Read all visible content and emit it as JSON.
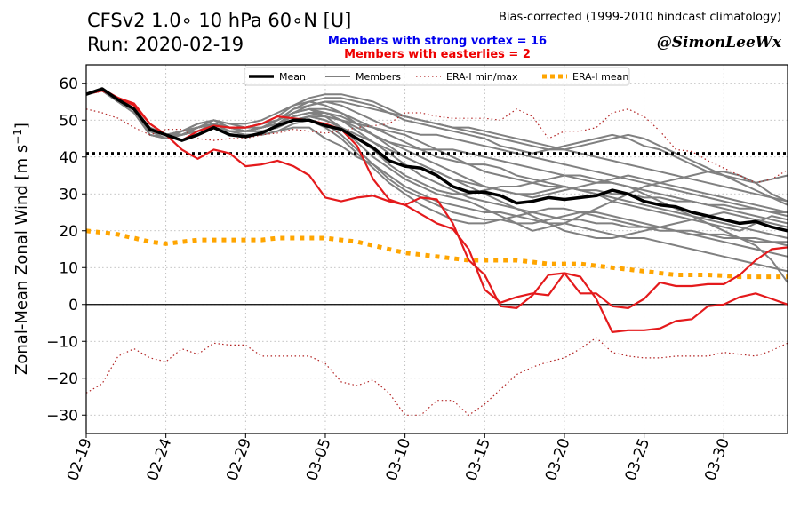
{
  "header": {
    "title_line1": "CFSv2 1.0∘ 10 hPa 60∘N [U]",
    "title_line2": "Run: 2020-02-19",
    "bias_note": "Bias-corrected (1999-2010 hindcast climatology)",
    "strong_vortex": "Members with strong vortex = 16",
    "easterlies": "Members with easterlies = 2",
    "credit": "@SimonLeeWx"
  },
  "colors": {
    "mean": "#000000",
    "members": "#808080",
    "easterly_members": "#e41a1c",
    "era_minmax": "#b22222",
    "era_mean": "#ffa500"
  },
  "chart_data": {
    "type": "line",
    "ylabel": "Zonal-Mean Zonal Wind [m s",
    "ylabel_sup": "−1",
    "ylabel_end": "]",
    "ylim": [
      -35,
      65
    ],
    "yticks": [
      60,
      50,
      40,
      30,
      20,
      10,
      0,
      -10,
      -20,
      -30
    ],
    "xlim_days": [
      0,
      44
    ],
    "xticks": [
      {
        "day": 0,
        "label": "02-19"
      },
      {
        "day": 5,
        "label": "02-24"
      },
      {
        "day": 10,
        "label": "02-29"
      },
      {
        "day": 15,
        "label": "03-05"
      },
      {
        "day": 20,
        "label": "03-10"
      },
      {
        "day": 25,
        "label": "03-15"
      },
      {
        "day": 30,
        "label": "03-20"
      },
      {
        "day": 35,
        "label": "03-25"
      },
      {
        "day": 40,
        "label": "03-30"
      }
    ],
    "grid": true,
    "legend": [
      {
        "key": "mean",
        "label": "Mean"
      },
      {
        "key": "members",
        "label": "Members"
      },
      {
        "key": "era_minmax",
        "label": "ERA-I min/max"
      },
      {
        "key": "era_mean",
        "label": "ERA-I mean"
      }
    ],
    "reference_lines": {
      "threshold": 41,
      "zero": 0
    },
    "series": [
      {
        "key": "mean",
        "values": [
          57,
          58.5,
          55.5,
          53,
          47.5,
          46,
          44.5,
          46,
          48,
          46,
          45.5,
          46.5,
          48.5,
          50,
          50,
          48.5,
          47.5,
          45,
          42.5,
          39,
          37.5,
          37,
          35,
          32,
          30.5,
          30.5,
          29.5,
          27.5,
          28,
          29,
          28.5,
          29,
          29.5,
          31,
          30,
          28,
          27,
          26.5,
          25,
          24,
          23,
          22,
          22.5,
          21,
          20
        ]
      },
      {
        "key": "era_mean",
        "values": [
          20,
          19.5,
          19,
          18,
          17,
          16.5,
          17,
          17.5,
          17.5,
          17.5,
          17.5,
          17.5,
          18,
          18,
          18,
          18,
          17.5,
          17,
          16,
          15,
          14,
          13.5,
          13,
          12.5,
          12,
          12,
          12,
          12,
          11.5,
          11,
          11,
          11,
          10.5,
          10,
          9.5,
          9,
          8.5,
          8,
          8,
          8,
          7.8,
          7.5,
          7.5,
          7.5,
          7.5
        ]
      },
      {
        "key": "era_max",
        "values": [
          53,
          52,
          50.5,
          48,
          46,
          47.5,
          47.5,
          45,
          44.5,
          45,
          45,
          46,
          46.5,
          47.5,
          47,
          46.5,
          47,
          48,
          48.5,
          49,
          52,
          52,
          51,
          50.5,
          50.5,
          50.5,
          50,
          53,
          51,
          45,
          47,
          47,
          48,
          52,
          53,
          51,
          47,
          42,
          41.5,
          39,
          37,
          35,
          33,
          34,
          36.5
        ]
      },
      {
        "key": "era_min",
        "values": [
          -24,
          -21.5,
          -14,
          -12,
          -14.5,
          -15.5,
          -12,
          -13.5,
          -10.5,
          -11,
          -11,
          -14,
          -14,
          -14,
          -14,
          -16,
          -21,
          -22,
          -20.5,
          -24,
          -30,
          -30,
          -26,
          -26,
          -30,
          -27,
          -23,
          -19,
          -17,
          -15.5,
          -14.5,
          -12,
          -9,
          -13,
          -14,
          -14.5,
          -14.5,
          -14,
          -14,
          -14,
          -13,
          -13.5,
          -14,
          -12.5,
          -10.5
        ]
      },
      {
        "key": "easterly_1",
        "values": [
          57,
          58.5,
          56,
          54.5,
          49,
          46,
          42,
          39.5,
          42,
          41,
          37.5,
          38,
          39,
          37.5,
          35,
          29,
          28,
          29,
          29.5,
          28,
          27,
          29,
          28.5,
          22,
          12,
          8,
          -0.5,
          -1,
          2.5,
          8,
          8.5,
          7.5,
          1.5,
          -7.5,
          -7,
          -7,
          -6.5,
          -4.5,
          -4,
          -0.5,
          0,
          2,
          3,
          1.5,
          0
        ]
      },
      {
        "key": "easterly_2",
        "values": [
          57,
          58,
          56,
          54,
          49,
          46,
          44.5,
          47,
          48.5,
          48,
          48,
          49,
          51,
          50.5,
          50,
          49,
          47.5,
          43,
          34,
          28.5,
          27,
          24.5,
          22,
          20.5,
          15,
          4,
          0.5,
          2,
          3,
          2.5,
          8.5,
          3,
          3,
          -0.5,
          -1,
          1.5,
          6,
          5,
          5,
          5.5,
          5.5,
          8,
          12,
          15,
          15.5
        ]
      },
      {
        "key": "member",
        "values": [
          57,
          58,
          55,
          53,
          46,
          45,
          47,
          48,
          49,
          48,
          47,
          48,
          49,
          52,
          53,
          53,
          52,
          50,
          48,
          46,
          44,
          42,
          40,
          39,
          38,
          38,
          37,
          35,
          34,
          33,
          32,
          31,
          30,
          28,
          27,
          26,
          25,
          24,
          23,
          22,
          21,
          20,
          22,
          24,
          23
        ]
      },
      {
        "key": "member",
        "values": [
          57,
          58,
          55,
          52,
          47,
          46,
          47,
          49,
          50,
          48,
          48,
          49,
          50,
          53,
          55,
          56,
          56,
          55,
          54,
          52,
          50,
          49,
          48,
          47,
          46,
          45,
          43,
          42,
          41,
          42,
          43,
          44,
          45,
          46,
          45,
          43,
          42,
          40,
          38,
          36,
          35,
          34,
          33,
          34,
          35
        ]
      },
      {
        "key": "member",
        "values": [
          57,
          58,
          56,
          53,
          48,
          46,
          46,
          48,
          49,
          47,
          46,
          46,
          47,
          48,
          48,
          45,
          43,
          40,
          38,
          35,
          32,
          30,
          28,
          27,
          26,
          25,
          25,
          24,
          23,
          22,
          22,
          21,
          20,
          19,
          18,
          18,
          17,
          16,
          15,
          14,
          13,
          12,
          11,
          10,
          9
        ]
      },
      {
        "key": "member",
        "values": [
          57,
          58,
          55,
          53,
          47,
          45,
          46,
          47,
          48,
          47,
          47,
          47,
          48,
          50,
          51,
          50,
          48,
          45,
          42,
          38,
          35,
          33,
          31,
          30,
          30,
          31,
          32,
          32,
          33,
          34,
          35,
          35,
          34,
          33,
          32,
          30,
          28,
          26,
          24,
          22,
          20,
          18,
          16,
          12,
          6
        ]
      },
      {
        "key": "member",
        "values": [
          57,
          58,
          56,
          53,
          48,
          46,
          47,
          48,
          49,
          48,
          47,
          48,
          49,
          51,
          52,
          52,
          51,
          49,
          46,
          43,
          40,
          38,
          36,
          34,
          33,
          32,
          31,
          30,
          30,
          31,
          32,
          31,
          30,
          29,
          28,
          27,
          26,
          25,
          24,
          23,
          22,
          21,
          20,
          19,
          18
        ]
      },
      {
        "key": "member",
        "values": [
          57,
          58,
          55,
          52,
          46,
          45,
          46,
          48,
          49,
          48,
          48,
          49,
          50,
          52,
          53,
          51,
          48,
          44,
          40,
          37,
          34,
          32,
          30,
          29,
          28,
          26,
          24,
          22,
          20,
          21,
          22,
          24,
          26,
          28,
          30,
          32,
          33,
          34,
          35,
          36,
          36,
          35,
          33,
          30,
          28
        ]
      },
      {
        "key": "member",
        "values": [
          57,
          58,
          55,
          53,
          47,
          46,
          46,
          47,
          48,
          47,
          47,
          48,
          50,
          53,
          54,
          55,
          54,
          52,
          50,
          48,
          47,
          46,
          46,
          45,
          44,
          43,
          42,
          41,
          40,
          39,
          38,
          37,
          36,
          35,
          34,
          33,
          32,
          31,
          30,
          29,
          28,
          27,
          26,
          25,
          24
        ]
      },
      {
        "key": "member",
        "values": [
          57,
          58,
          56,
          53,
          47,
          45,
          46,
          48,
          50,
          49,
          48,
          48,
          49,
          50,
          50,
          49,
          46,
          42,
          38,
          34,
          31,
          29,
          27,
          25,
          24,
          23,
          23,
          22,
          22,
          23,
          24,
          25,
          25,
          24,
          23,
          22,
          21,
          20,
          19,
          18,
          17,
          16,
          15,
          14,
          13
        ]
      },
      {
        "key": "member",
        "values": [
          57,
          58,
          55,
          52,
          47,
          46,
          47,
          48,
          49,
          48,
          48,
          49,
          51,
          54,
          56,
          57,
          57,
          56,
          55,
          53,
          51,
          50,
          49,
          48,
          47,
          46,
          45,
          44,
          43,
          42,
          42,
          43,
          44,
          45,
          46,
          45,
          43,
          41,
          39,
          37,
          35,
          33,
          31,
          29,
          27
        ]
      },
      {
        "key": "member",
        "values": [
          57,
          58,
          55,
          53,
          48,
          46,
          46,
          47,
          48,
          47,
          46,
          46,
          47,
          49,
          50,
          48,
          45,
          41,
          37,
          33,
          30,
          27,
          25,
          23,
          22,
          22,
          23,
          24,
          25,
          26,
          26,
          25,
          24,
          23,
          22,
          21,
          21,
          20,
          20,
          19,
          19,
          18,
          18,
          17,
          17
        ]
      },
      {
        "key": "member",
        "values": [
          57,
          58,
          56,
          53,
          47,
          45,
          46,
          48,
          49,
          48,
          47,
          48,
          49,
          51,
          52,
          51,
          50,
          48,
          46,
          44,
          42,
          40,
          38,
          36,
          34,
          32,
          31,
          30,
          29,
          30,
          31,
          32,
          33,
          34,
          35,
          34,
          33,
          32,
          31,
          30,
          29,
          28,
          27,
          26,
          25
        ]
      },
      {
        "key": "member",
        "values": [
          57,
          58,
          55,
          52,
          46,
          45,
          47,
          49,
          50,
          49,
          49,
          50,
          52,
          54,
          55,
          54,
          52,
          49,
          46,
          44,
          43,
          42,
          42,
          42,
          41,
          40,
          39,
          38,
          37,
          36,
          35,
          34,
          33,
          33,
          32,
          31,
          30,
          29,
          28,
          27,
          26,
          25,
          24,
          23,
          22
        ]
      },
      {
        "key": "member",
        "values": [
          57,
          58,
          55,
          53,
          47,
          46,
          46,
          47,
          48,
          47,
          47,
          48,
          49,
          50,
          51,
          50,
          48,
          46,
          44,
          42,
          40,
          38,
          36,
          34,
          32,
          30,
          28,
          26,
          24,
          22,
          20,
          19,
          18,
          18,
          19,
          20,
          21,
          22,
          23,
          24,
          25,
          24,
          23,
          22,
          21
        ]
      },
      {
        "key": "member",
        "values": [
          57,
          58,
          56,
          53,
          48,
          46,
          47,
          48,
          49,
          48,
          47,
          47,
          48,
          50,
          51,
          51,
          50,
          49,
          48,
          47,
          46,
          44,
          42,
          40,
          38,
          36,
          35,
          34,
          33,
          32,
          32,
          31,
          31,
          30,
          30,
          29,
          29,
          28,
          28,
          27,
          27,
          26,
          26,
          25,
          25
        ]
      },
      {
        "key": "member",
        "values": [
          57,
          58,
          55,
          52,
          47,
          45,
          46,
          48,
          49,
          48,
          48,
          49,
          50,
          52,
          54,
          55,
          55,
          54,
          53,
          52,
          51,
          50,
          49,
          48,
          48,
          47,
          46,
          45,
          44,
          43,
          42,
          41,
          40,
          39,
          38,
          37,
          36,
          35,
          34,
          33,
          32,
          31,
          30,
          29,
          28
        ]
      },
      {
        "key": "member",
        "values": [
          57,
          58,
          55,
          53,
          47,
          46,
          46,
          47,
          49,
          48,
          47,
          48,
          50,
          52,
          53,
          52,
          50,
          47,
          44,
          41,
          38,
          35,
          33,
          31,
          29,
          28,
          27,
          26,
          25,
          24,
          23,
          23,
          22,
          22,
          21,
          21,
          20,
          20,
          19,
          19,
          18,
          18,
          17,
          17,
          16
        ]
      }
    ]
  }
}
